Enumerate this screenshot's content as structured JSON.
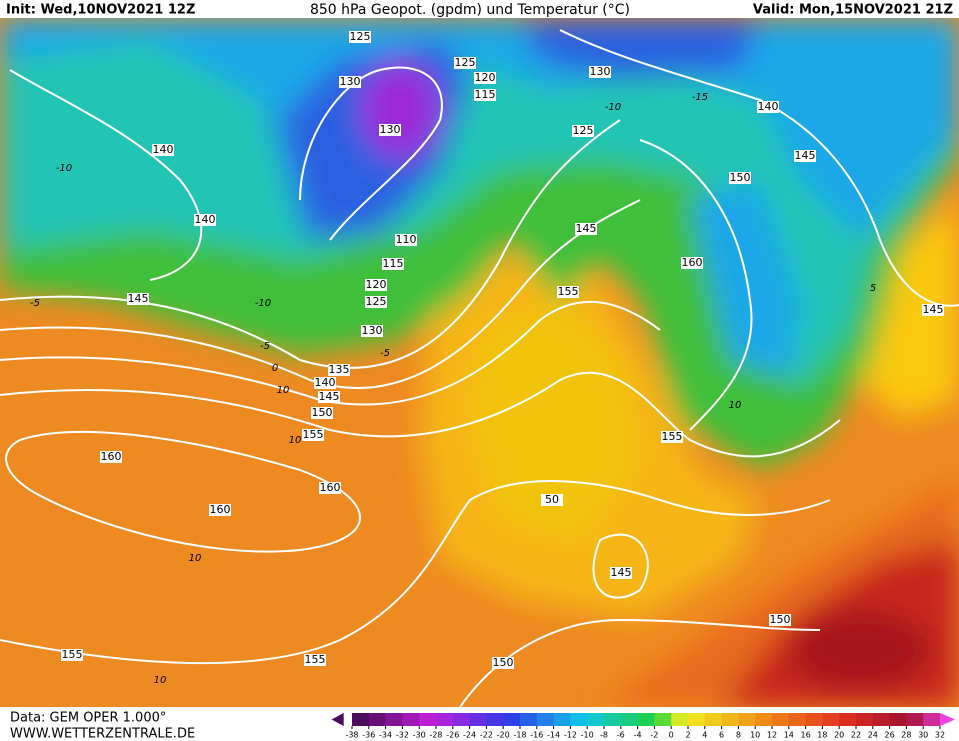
{
  "header": {
    "init": "Init: Wed,10NOV2021 12Z",
    "title": "850 hPa Geopot. (gpdm) und Temperatur (°C)",
    "valid": "Valid: Mon,15NOV2021 21Z"
  },
  "footer": {
    "data": "Data: GEM OPER 1.000°",
    "website": "WWW.WETTERZENTRALE.DE"
  },
  "colorbar": {
    "ticks": [
      -38,
      -36,
      -34,
      -32,
      -30,
      -28,
      -26,
      -24,
      -22,
      -20,
      -18,
      -16,
      -14,
      -12,
      -10,
      -8,
      -6,
      -4,
      -2,
      0,
      2,
      4,
      6,
      8,
      10,
      12,
      14,
      16,
      18,
      20,
      22,
      24,
      26,
      28,
      30,
      32
    ]
  },
  "geopotential_labels": [
    125,
    130,
    130,
    125,
    120,
    115,
    130,
    140,
    125,
    145,
    140,
    140,
    150,
    145,
    110,
    115,
    160,
    120,
    155,
    125,
    145,
    145,
    130,
    135,
    140,
    145,
    150,
    155,
    155,
    160,
    160,
    50,
    160,
    145,
    150,
    155,
    155,
    150
  ],
  "temperature_labels": [
    -10,
    -5,
    -10,
    -5,
    -5,
    0,
    10,
    10,
    10,
    10,
    5,
    10,
    -10,
    -15
  ]
}
